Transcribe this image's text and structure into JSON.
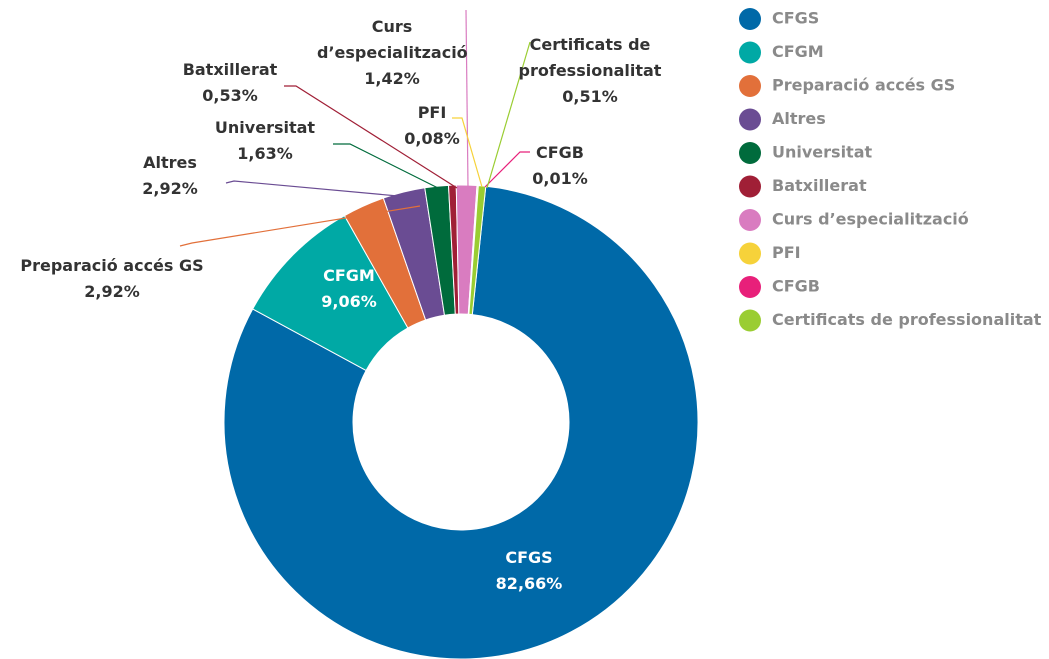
{
  "chart_data": {
    "type": "donut",
    "categories": [
      "CFGS",
      "CFGM",
      "Preparació accés GS",
      "Altres",
      "Universitat",
      "Batxillerat",
      "Curs d’especialització",
      "PFI",
      "CFGB",
      "Certificats de professionalitat"
    ],
    "values": [
      82.66,
      9.06,
      2.92,
      2.92,
      1.63,
      0.53,
      1.42,
      0.08,
      0.01,
      0.51
    ],
    "value_labels": [
      "82,66%",
      "9,06%",
      "2,92%",
      "2,92%",
      "1,63%",
      "0,53%",
      "1,42%",
      "0,08%",
      "0,01%",
      "0,51%"
    ],
    "colors": [
      "#0069a8",
      "#00a9a5",
      "#e2703a",
      "#6a4c93",
      "#006b3c",
      "#a01f36",
      "#d97cc0",
      "#f6d23a",
      "#e8207a",
      "#9acd32"
    ],
    "legend": "right"
  }
}
